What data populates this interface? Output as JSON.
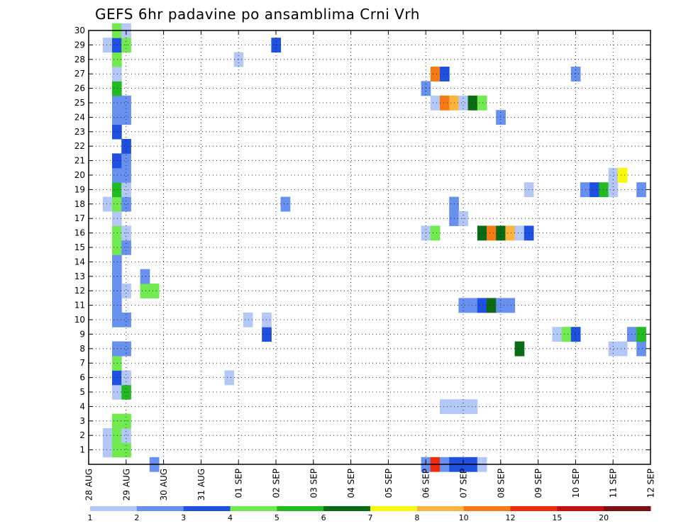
{
  "chart_data": {
    "type": "heatmap",
    "title": "GEFS 6hr padavine po ansamblima Crni Vrh",
    "xlabel": "",
    "ylabel": "",
    "x_ticks": [
      "28 AUG",
      "29 AUG",
      "30 AUG",
      "31 AUG",
      "01 SEP",
      "02 SEP",
      "03 SEP",
      "04 SEP",
      "05 SEP",
      "06 SEP",
      "07 SEP",
      "08 SEP",
      "09 SEP",
      "10 SEP",
      "11 SEP",
      "12 SEP"
    ],
    "x_unit": "6-hour step starting 28 AUG 00Z",
    "x_range": [
      0,
      60
    ],
    "y_ticks": [
      1,
      2,
      3,
      4,
      5,
      6,
      7,
      8,
      9,
      10,
      11,
      12,
      13,
      14,
      15,
      16,
      17,
      18,
      19,
      20,
      21,
      22,
      23,
      24,
      25,
      26,
      27,
      28,
      29,
      30
    ],
    "y_range": [
      0,
      30
    ],
    "grid": true,
    "colorbar": {
      "labels": [
        "1",
        "2",
        "3",
        "4",
        "5",
        "6",
        "7",
        "8",
        "10",
        "12",
        "15",
        "20"
      ],
      "bins": [
        1,
        2,
        3,
        4,
        5,
        6,
        7,
        8,
        10,
        12,
        15,
        20,
        "20+"
      ],
      "colors": [
        "#b4c8f8",
        "#6890ee",
        "#2050e0",
        "#70ea4e",
        "#22bb22",
        "#0a6b14",
        "#f8f808",
        "#fbb43c",
        "#f57a14",
        "#f02a0a",
        "#c01010",
        "#7a1010"
      ]
    },
    "cells": [
      {
        "member": 0,
        "t": 7,
        "bin": 1
      },
      {
        "member": 0,
        "t": 36,
        "bin": 1
      },
      {
        "member": 0,
        "t": 37,
        "bin": 9
      },
      {
        "member": 0,
        "t": 38,
        "bin": 1
      },
      {
        "member": 0,
        "t": 39,
        "bin": 2
      },
      {
        "member": 0,
        "t": 40,
        "bin": 2
      },
      {
        "member": 0,
        "t": 41,
        "bin": 2
      },
      {
        "member": 0,
        "t": 42,
        "bin": 0
      },
      {
        "member": 1,
        "t": 2,
        "bin": 0
      },
      {
        "member": 1,
        "t": 3,
        "bin": 3
      },
      {
        "member": 1,
        "t": 4,
        "bin": 3
      },
      {
        "member": 2,
        "t": 2,
        "bin": 0
      },
      {
        "member": 2,
        "t": 3,
        "bin": 3
      },
      {
        "member": 2,
        "t": 4,
        "bin": 0
      },
      {
        "member": 3,
        "t": 3,
        "bin": 3
      },
      {
        "member": 3,
        "t": 4,
        "bin": 3
      },
      {
        "member": 4,
        "t": 38,
        "bin": 0
      },
      {
        "member": 4,
        "t": 39,
        "bin": 0
      },
      {
        "member": 4,
        "t": 40,
        "bin": 0
      },
      {
        "member": 4,
        "t": 41,
        "bin": 0
      },
      {
        "member": 5,
        "t": 3,
        "bin": 0
      },
      {
        "member": 5,
        "t": 4,
        "bin": 4
      },
      {
        "member": 6,
        "t": 3,
        "bin": 2
      },
      {
        "member": 6,
        "t": 4,
        "bin": 0
      },
      {
        "member": 6,
        "t": 15,
        "bin": 0
      },
      {
        "member": 7,
        "t": 3,
        "bin": 3
      },
      {
        "member": 8,
        "t": 3,
        "bin": 1
      },
      {
        "member": 8,
        "t": 4,
        "bin": 1
      },
      {
        "member": 8,
        "t": 46,
        "bin": 5
      },
      {
        "member": 8,
        "t": 56,
        "bin": 0
      },
      {
        "member": 8,
        "t": 57,
        "bin": 0
      },
      {
        "member": 8,
        "t": 59,
        "bin": 1
      },
      {
        "member": 9,
        "t": 19,
        "bin": 2
      },
      {
        "member": 9,
        "t": 50,
        "bin": 0
      },
      {
        "member": 9,
        "t": 51,
        "bin": 3
      },
      {
        "member": 9,
        "t": 52,
        "bin": 2
      },
      {
        "member": 9,
        "t": 58,
        "bin": 1
      },
      {
        "member": 9,
        "t": 59,
        "bin": 4
      },
      {
        "member": 10,
        "t": 3,
        "bin": 1
      },
      {
        "member": 10,
        "t": 4,
        "bin": 1
      },
      {
        "member": 10,
        "t": 17,
        "bin": 0
      },
      {
        "member": 10,
        "t": 19,
        "bin": 0
      },
      {
        "member": 11,
        "t": 3,
        "bin": 1
      },
      {
        "member": 11,
        "t": 40,
        "bin": 1
      },
      {
        "member": 11,
        "t": 41,
        "bin": 1
      },
      {
        "member": 11,
        "t": 42,
        "bin": 2
      },
      {
        "member": 11,
        "t": 43,
        "bin": 5
      },
      {
        "member": 11,
        "t": 44,
        "bin": 1
      },
      {
        "member": 11,
        "t": 45,
        "bin": 1
      },
      {
        "member": 12,
        "t": 3,
        "bin": 1
      },
      {
        "member": 12,
        "t": 4,
        "bin": 0
      },
      {
        "member": 12,
        "t": 6,
        "bin": 3
      },
      {
        "member": 12,
        "t": 7,
        "bin": 3
      },
      {
        "member": 13,
        "t": 3,
        "bin": 1
      },
      {
        "member": 13,
        "t": 6,
        "bin": 1
      },
      {
        "member": 14,
        "t": 3,
        "bin": 1
      },
      {
        "member": 15,
        "t": 3,
        "bin": 3
      },
      {
        "member": 15,
        "t": 4,
        "bin": 1
      },
      {
        "member": 16,
        "t": 3,
        "bin": 3
      },
      {
        "member": 16,
        "t": 4,
        "bin": 0
      },
      {
        "member": 16,
        "t": 36,
        "bin": 0
      },
      {
        "member": 16,
        "t": 37,
        "bin": 3
      },
      {
        "member": 16,
        "t": 42,
        "bin": 5
      },
      {
        "member": 16,
        "t": 43,
        "bin": 8
      },
      {
        "member": 16,
        "t": 44,
        "bin": 5
      },
      {
        "member": 16,
        "t": 45,
        "bin": 7
      },
      {
        "member": 16,
        "t": 46,
        "bin": 0
      },
      {
        "member": 16,
        "t": 47,
        "bin": 2
      },
      {
        "member": 17,
        "t": 3,
        "bin": 0
      },
      {
        "member": 17,
        "t": 39,
        "bin": 1
      },
      {
        "member": 17,
        "t": 40,
        "bin": 0
      },
      {
        "member": 18,
        "t": 2,
        "bin": 0
      },
      {
        "member": 18,
        "t": 3,
        "bin": 3
      },
      {
        "member": 18,
        "t": 4,
        "bin": 1
      },
      {
        "member": 18,
        "t": 21,
        "bin": 1
      },
      {
        "member": 18,
        "t": 39,
        "bin": 1
      },
      {
        "member": 19,
        "t": 3,
        "bin": 4
      },
      {
        "member": 19,
        "t": 4,
        "bin": 0
      },
      {
        "member": 19,
        "t": 47,
        "bin": 0
      },
      {
        "member": 19,
        "t": 53,
        "bin": 1
      },
      {
        "member": 19,
        "t": 54,
        "bin": 2
      },
      {
        "member": 19,
        "t": 55,
        "bin": 4
      },
      {
        "member": 19,
        "t": 56,
        "bin": 0
      },
      {
        "member": 19,
        "t": 59,
        "bin": 1
      },
      {
        "member": 20,
        "t": 3,
        "bin": 1
      },
      {
        "member": 20,
        "t": 4,
        "bin": 1
      },
      {
        "member": 20,
        "t": 56,
        "bin": 0
      },
      {
        "member": 20,
        "t": 57,
        "bin": 6
      },
      {
        "member": 21,
        "t": 3,
        "bin": 2
      },
      {
        "member": 21,
        "t": 4,
        "bin": 1
      },
      {
        "member": 22,
        "t": 4,
        "bin": 2
      },
      {
        "member": 23,
        "t": 3,
        "bin": 2
      },
      {
        "member": 24,
        "t": 3,
        "bin": 1
      },
      {
        "member": 24,
        "t": 4,
        "bin": 1
      },
      {
        "member": 24,
        "t": 44,
        "bin": 1
      },
      {
        "member": 25,
        "t": 3,
        "bin": 1
      },
      {
        "member": 25,
        "t": 4,
        "bin": 1
      },
      {
        "member": 25,
        "t": 37,
        "bin": 0
      },
      {
        "member": 25,
        "t": 38,
        "bin": 8
      },
      {
        "member": 25,
        "t": 39,
        "bin": 7
      },
      {
        "member": 25,
        "t": 40,
        "bin": 0
      },
      {
        "member": 25,
        "t": 41,
        "bin": 5
      },
      {
        "member": 25,
        "t": 42,
        "bin": 3
      },
      {
        "member": 26,
        "t": 3,
        "bin": 4
      },
      {
        "member": 26,
        "t": 36,
        "bin": 1
      },
      {
        "member": 27,
        "t": 3,
        "bin": 0
      },
      {
        "member": 27,
        "t": 37,
        "bin": 8
      },
      {
        "member": 27,
        "t": 38,
        "bin": 2
      },
      {
        "member": 27,
        "t": 52,
        "bin": 1
      },
      {
        "member": 28,
        "t": 3,
        "bin": 3
      },
      {
        "member": 28,
        "t": 16,
        "bin": 0
      },
      {
        "member": 29,
        "t": 2,
        "bin": 0
      },
      {
        "member": 29,
        "t": 3,
        "bin": 2
      },
      {
        "member": 29,
        "t": 4,
        "bin": 3
      },
      {
        "member": 29,
        "t": 20,
        "bin": 2
      },
      {
        "member": 30,
        "t": 3,
        "bin": 3
      },
      {
        "member": 30,
        "t": 4,
        "bin": 0
      }
    ]
  }
}
